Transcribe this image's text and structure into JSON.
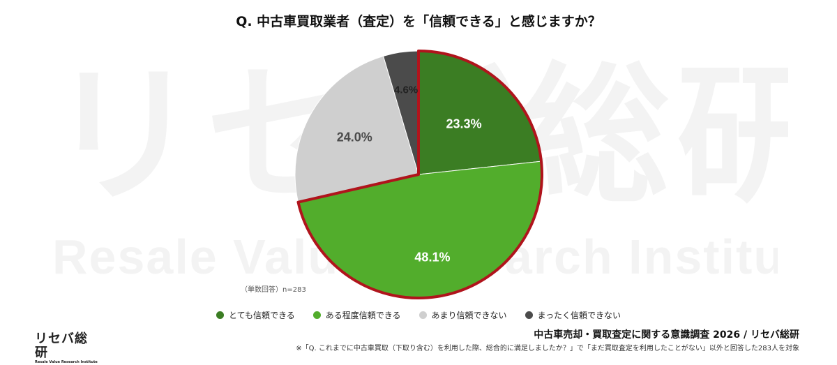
{
  "watermark": {
    "main": "リセバ総研",
    "sub": "Resale Value Research Institute"
  },
  "chart_data": {
    "type": "pie",
    "title": "Q. 中古車買取業者（査定）を「信頼できる」と感じますか？",
    "categories": [
      "とても信頼できる",
      "ある程度信頼できる",
      "あまり信頼できない",
      "まったく信頼できない"
    ],
    "values": [
      23.3,
      48.1,
      24.0,
      4.6
    ],
    "labels": [
      "23.3%",
      "48.1%",
      "24.0%",
      "4.6%"
    ],
    "colors": [
      "#3b7d23",
      "#52ad2c",
      "#cfcfcf",
      "#4b4b4b"
    ],
    "label_colors": [
      "#ffffff",
      "#ffffff",
      "#4a4a4a",
      "#222222"
    ],
    "highlight_border": "#b0141c",
    "highlighted": [
      "とても信頼できる",
      "ある程度信頼できる"
    ],
    "note": "（単数回答）n=283",
    "legend_placement": "bottom"
  },
  "footer": {
    "logo_main": "リセバ総研",
    "logo_sub": "Resale Value Research Institute",
    "survey_title": "中古車売却・買取査定に関する意識調査 2026 / リセバ総研",
    "survey_note": "※「Q. これまでに中古車買取（下取り含む）を利用した際、総合的に満足しましたか？」で「まだ買取査定を利用したことがない」以外と回答した283人を対象"
  }
}
